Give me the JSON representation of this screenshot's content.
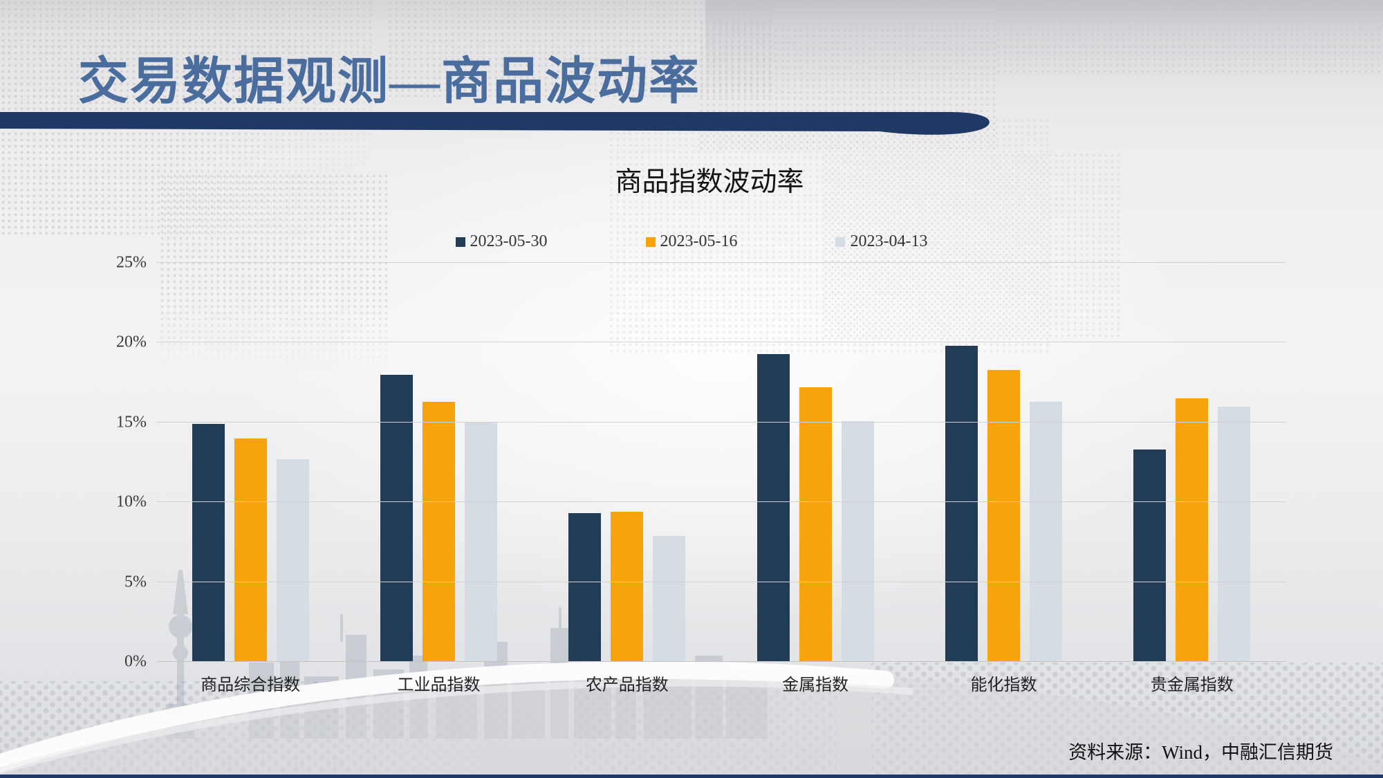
{
  "slide": {
    "title": "交易数据观测—商品波动率",
    "source_note": "资料来源：Wind，中融汇信期货"
  },
  "colors": {
    "title_blue": "#4a6d9e",
    "header_band_navy": "#1f3864",
    "bottom_strip_navy": "#1f3864",
    "bar_navy": "#223c55",
    "bar_orange": "#f8a30b",
    "bar_lightblue": "#d6dce3",
    "gridline": "#d2d2d4"
  },
  "chart_data": {
    "type": "bar",
    "title": "商品指数波动率",
    "categories": [
      "商品综合指数",
      "工业品指数",
      "农产品指数",
      "金属指数",
      "能化指数",
      "贵金属指数"
    ],
    "series": [
      {
        "name": "2023-05-30",
        "color": "#223c55",
        "values": [
          14.9,
          18.0,
          9.3,
          19.3,
          19.8,
          13.3
        ]
      },
      {
        "name": "2023-05-16",
        "color": "#f8a30b",
        "values": [
          14.0,
          16.3,
          9.4,
          17.2,
          18.3,
          16.5
        ]
      },
      {
        "name": "2023-04-13",
        "color": "#d6dce3",
        "values": [
          12.7,
          15.0,
          7.9,
          15.1,
          16.3,
          16.0
        ]
      }
    ],
    "y_axis": {
      "min": 0,
      "max": 25,
      "unit": "%",
      "ticks": [
        "0%",
        "5%",
        "10%",
        "15%",
        "20%",
        "25%"
      ]
    },
    "grid": true,
    "legend_position": "top",
    "xlabel": "",
    "ylabel": ""
  }
}
